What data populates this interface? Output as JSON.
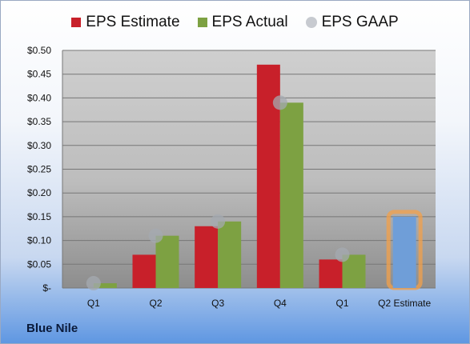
{
  "company": "Blue Nile",
  "colors": {
    "estimate": "#c8202a",
    "actual": "#7da142",
    "gaap": "#a4a9b0",
    "highlight_fill": "#6f9ed8",
    "highlight_border": "#f3a04a"
  },
  "chart_data": {
    "type": "bar",
    "categories": [
      "Q1",
      "Q2",
      "Q3",
      "Q4",
      "Q1",
      "Q2 Estimate"
    ],
    "series": [
      {
        "name": "EPS Estimate",
        "values": [
          0.0,
          0.07,
          0.13,
          0.47,
          0.06,
          null
        ]
      },
      {
        "name": "EPS Actual",
        "values": [
          0.01,
          0.11,
          0.14,
          0.39,
          0.07,
          0.15
        ]
      },
      {
        "name": "EPS GAAP",
        "values": [
          0.01,
          0.11,
          0.14,
          0.39,
          0.07,
          null
        ]
      }
    ],
    "highlighted_category": "Q2 Estimate",
    "ylim": [
      0,
      0.5
    ],
    "yticks": [
      {
        "value": 0.0,
        "label": "$-"
      },
      {
        "value": 0.05,
        "label": "$0.05"
      },
      {
        "value": 0.1,
        "label": "$0.10"
      },
      {
        "value": 0.15,
        "label": "$0.15"
      },
      {
        "value": 0.2,
        "label": "$0.20"
      },
      {
        "value": 0.25,
        "label": "$0.25"
      },
      {
        "value": 0.3,
        "label": "$0.30"
      },
      {
        "value": 0.35,
        "label": "$0.35"
      },
      {
        "value": 0.4,
        "label": "$0.40"
      },
      {
        "value": 0.45,
        "label": "$0.45"
      },
      {
        "value": 0.5,
        "label": "$0.50"
      }
    ],
    "legend_position": "top",
    "grid": true
  }
}
